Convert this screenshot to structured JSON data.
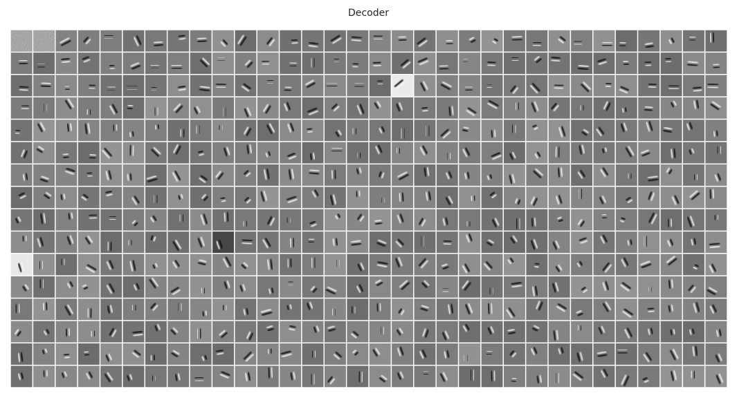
{
  "figure": {
    "title": "Decoder",
    "rows": 16,
    "cols": 32,
    "background_gray": "#8c8c8c",
    "separator_color": "#ffffff"
  }
}
